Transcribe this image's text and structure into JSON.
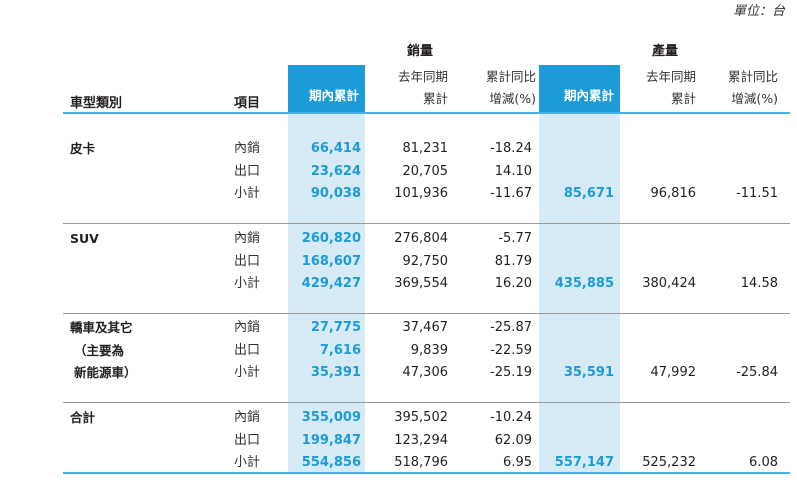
{
  "unit_note": "單位：台",
  "header": {
    "category_col": "車型類別",
    "item_col": "項目",
    "sales_group": "銷量",
    "production_group": "產量",
    "sales_cumulative": "期內累計",
    "sales_prior_l1": "去年同期",
    "sales_prior_l2": "累計",
    "sales_change_l1": "累計同比",
    "sales_change_l2": "增減(%)",
    "prod_cumulative": "期內累計",
    "prod_prior_l1": "去年同期",
    "prod_prior_l2": "累計",
    "prod_change_l1": "累計同比",
    "prod_change_l2": "增減(%)"
  },
  "groups": [
    {
      "name_lines": [
        "皮卡"
      ],
      "rows": [
        {
          "item": "內銷",
          "sales": "66,414",
          "sales_prior": "81,231",
          "sales_change": "-18.24",
          "prod": "",
          "prod_prior": "",
          "prod_change": ""
        },
        {
          "item": "出口",
          "sales": "23,624",
          "sales_prior": "20,705",
          "sales_change": "14.10",
          "prod": "",
          "prod_prior": "",
          "prod_change": ""
        },
        {
          "item": "小計",
          "sales": "90,038",
          "sales_prior": "101,936",
          "sales_change": "-11.67",
          "prod": "85,671",
          "prod_prior": "96,816",
          "prod_change": "-11.51"
        }
      ]
    },
    {
      "name_lines": [
        "SUV"
      ],
      "rows": [
        {
          "item": "內銷",
          "sales": "260,820",
          "sales_prior": "276,804",
          "sales_change": "-5.77",
          "prod": "",
          "prod_prior": "",
          "prod_change": ""
        },
        {
          "item": "出口",
          "sales": "168,607",
          "sales_prior": "92,750",
          "sales_change": "81.79",
          "prod": "",
          "prod_prior": "",
          "prod_change": ""
        },
        {
          "item": "小計",
          "sales": "429,427",
          "sales_prior": "369,554",
          "sales_change": "16.20",
          "prod": "435,885",
          "prod_prior": "380,424",
          "prod_change": "14.58"
        }
      ]
    },
    {
      "name_lines": [
        "轎車及其它",
        "（主要為",
        "新能源車）"
      ],
      "rows": [
        {
          "item": "內銷",
          "sales": "27,775",
          "sales_prior": "37,467",
          "sales_change": "-25.87",
          "prod": "",
          "prod_prior": "",
          "prod_change": ""
        },
        {
          "item": "出口",
          "sales": "7,616",
          "sales_prior": "9,839",
          "sales_change": "-22.59",
          "prod": "",
          "prod_prior": "",
          "prod_change": ""
        },
        {
          "item": "小計",
          "sales": "35,391",
          "sales_prior": "47,306",
          "sales_change": "-25.19",
          "prod": "35,591",
          "prod_prior": "47,992",
          "prod_change": "-25.84"
        }
      ]
    },
    {
      "name_lines": [
        "合計"
      ],
      "rows": [
        {
          "item": "內銷",
          "sales": "355,009",
          "sales_prior": "395,502",
          "sales_change": "-10.24",
          "prod": "",
          "prod_prior": "",
          "prod_change": ""
        },
        {
          "item": "出口",
          "sales": "199,847",
          "sales_prior": "123,294",
          "sales_change": "62.09",
          "prod": "",
          "prod_prior": "",
          "prod_change": ""
        },
        {
          "item": "小計",
          "sales": "554,856",
          "sales_prior": "518,796",
          "sales_change": "6.95",
          "prod": "557,147",
          "prod_prior": "525,232",
          "prod_change": "6.08"
        }
      ]
    }
  ],
  "colors": {
    "accent": "#1b9bd7",
    "highlight": "#d7ebf7",
    "rule": "#4bb0e0"
  }
}
